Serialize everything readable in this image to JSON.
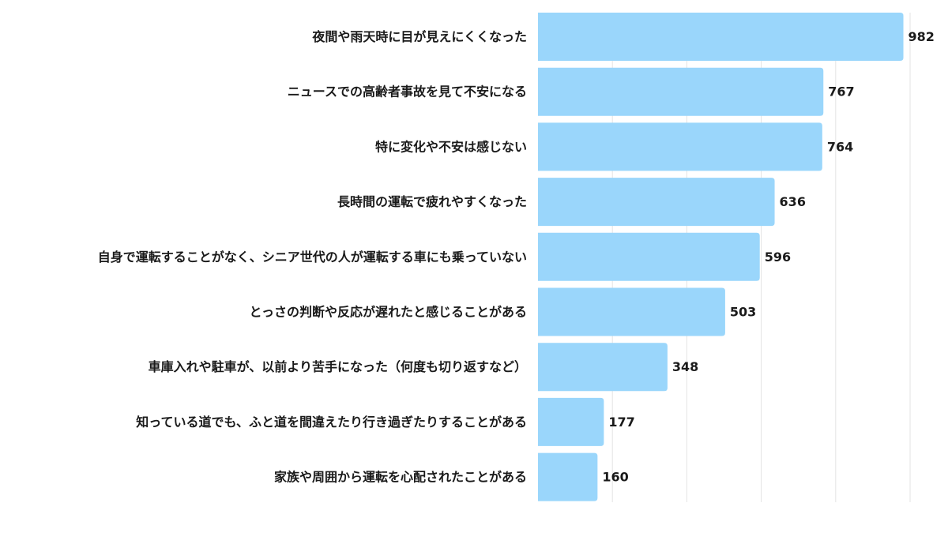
{
  "colors": {
    "bar": "#9ad6fb",
    "grid": "#e3e3e3",
    "text": "#1a1a1a"
  },
  "chart_data": {
    "type": "bar",
    "orientation": "horizontal",
    "grid": true,
    "xlim": [
      0,
      1000
    ],
    "categories": [
      "夜間や雨天時に目が見えにくくなった",
      "ニュースでの高齢者事故を見て不安になる",
      "特に変化や不安は感じない",
      "長時間の運転で疲れやすくなった",
      "自身で運転することがなく、シニア世代の人が運転する車にも乗っていない",
      "とっさの判断や反応が遅れたと感じることがある",
      "車庫入れや駐車が、以前より苦手になった（何度も切り返すなど）",
      "知っている道でも、ふと道を間違えたり行き過ぎたりすることがある",
      "家族や周囲から運転を心配されたことがある"
    ],
    "values": [
      982,
      767,
      764,
      636,
      596,
      503,
      348,
      177,
      160
    ]
  }
}
